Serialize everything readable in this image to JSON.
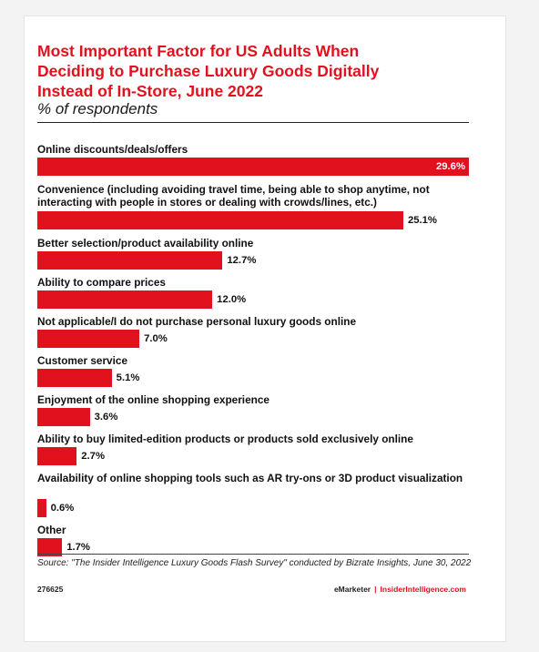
{
  "title": "Most Important Factor for US Adults When\nDeciding to Purchase Luxury Goods Digitally\nInstead of In-Store, June 2022",
  "subtitle": "% of respondents",
  "chart_data": {
    "type": "bar",
    "orientation": "horizontal",
    "title": "Most Important Factor for US Adults When Deciding to Purchase Luxury Goods Digitally Instead of In-Store, June 2022",
    "subtitle": "% of respondents",
    "categories": [
      "Online discounts/deals/offers",
      "Convenience (including avoiding travel time, being able to shop anytime, not interacting with people in stores or dealing with crowds/lines, etc.)",
      "Better selection/product availability online",
      "Ability to compare prices",
      "Not applicable/I do not purchase personal luxury goods online",
      "Customer service",
      "Enjoyment of the online shopping experience",
      "Ability to buy limited-edition products or products sold exclusively online",
      "Availability of online shopping tools such as AR try-ons or 3D product visualization",
      "Other"
    ],
    "values": [
      29.6,
      25.1,
      12.7,
      12.0,
      7.0,
      5.1,
      3.6,
      2.7,
      0.6,
      1.7
    ],
    "value_labels": [
      "29.6%",
      "25.1%",
      "12.7%",
      "12.0%",
      "7.0%",
      "5.1%",
      "3.6%",
      "2.7%",
      "0.6%",
      "1.7%"
    ],
    "xlim": [
      0,
      29.6
    ],
    "grid": false,
    "legend": "none",
    "bar_color": "#e1111e"
  },
  "source": "Source: \"The Insider Intelligence Luxury Goods Flash Survey\" conducted by Bizrate Insights, June 30, 2022",
  "footer": {
    "chart_id": "276625",
    "brand_emarketer": "eMarketer",
    "brand_separator": "|",
    "brand_ii": "InsiderIntelligence.com"
  },
  "colors": {
    "accent": "#e1111e",
    "text": "#111111"
  }
}
